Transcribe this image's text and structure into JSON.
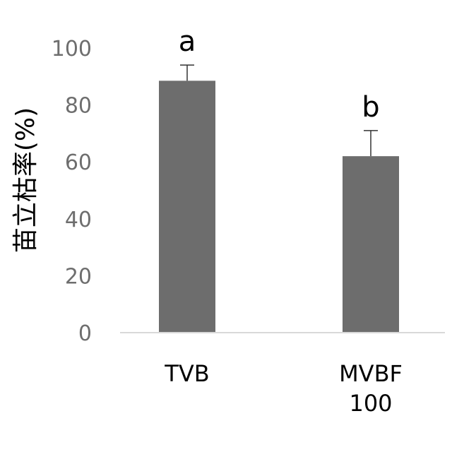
{
  "chart_data": {
    "type": "bar",
    "title": "",
    "xlabel": "",
    "ylabel": "苗立枯率(%)",
    "ylim": [
      0,
      100
    ],
    "yticks": [
      "0",
      "20",
      "40",
      "60",
      "80",
      "100"
    ],
    "categories": [
      [
        "TVB"
      ],
      [
        "MVBF",
        "100"
      ]
    ],
    "values": [
      88.5,
      62
    ],
    "errors": [
      5.5,
      9
    ],
    "significance": [
      "a",
      "b"
    ],
    "grid": false,
    "legend": "none"
  },
  "colors": {
    "bar": "#6d6d6d",
    "axis": "#d9d9d9",
    "tick_text": "#6e6e6e",
    "label_text": "#000000"
  }
}
